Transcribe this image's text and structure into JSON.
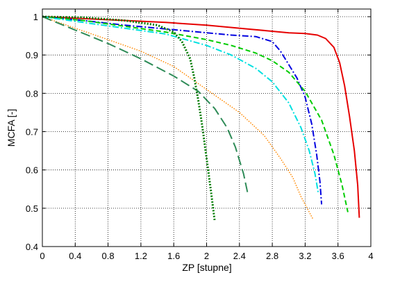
{
  "chart_data": {
    "type": "line",
    "title": "",
    "xlabel": "ZP [stupne]",
    "ylabel": "MCFA [-]",
    "xlim": [
      0,
      4
    ],
    "ylim": [
      0.4,
      1.02
    ],
    "xticks": [
      0,
      0.4,
      0.8,
      1.2,
      1.6,
      2,
      2.4,
      2.8,
      3.2,
      3.6,
      4
    ],
    "xtick_labels": [
      "0",
      "0.4",
      "0.8",
      "1.2",
      "1.6",
      "2",
      "2.4",
      "2.8",
      "3.2",
      "3.6",
      "4"
    ],
    "yticks": [
      0.4,
      0.5,
      0.6,
      0.7,
      0.8,
      0.9,
      1
    ],
    "ytick_labels": [
      "0.4",
      "0.5",
      "0.6",
      "0.7",
      "0.8",
      "0.9",
      "1"
    ],
    "grid": true,
    "legend": "none",
    "series": [
      {
        "color": "#e60000",
        "style": "solid",
        "x": [
          0,
          0.5,
          1.0,
          1.5,
          2.0,
          2.5,
          3.0,
          3.2,
          3.35,
          3.45,
          3.55,
          3.62,
          3.68,
          3.74,
          3.8,
          3.84,
          3.86
        ],
        "y": [
          1.0,
          0.995,
          0.99,
          0.985,
          0.978,
          0.968,
          0.958,
          0.956,
          0.952,
          0.943,
          0.92,
          0.88,
          0.82,
          0.74,
          0.65,
          0.56,
          0.475
        ]
      },
      {
        "color": "#0000e0",
        "style": "dashdot",
        "x": [
          0,
          0.5,
          1.0,
          1.5,
          2.0,
          2.3,
          2.6,
          2.8,
          2.9,
          3.0,
          3.1,
          3.2,
          3.28,
          3.34,
          3.38,
          3.4
        ],
        "y": [
          1.0,
          0.99,
          0.978,
          0.968,
          0.958,
          0.952,
          0.948,
          0.935,
          0.91,
          0.875,
          0.84,
          0.79,
          0.72,
          0.64,
          0.57,
          0.51
        ]
      },
      {
        "color": "#00cc00",
        "style": "dashed",
        "x": [
          0,
          0.5,
          1.0,
          1.5,
          2.0,
          2.3,
          2.6,
          2.8,
          3.0,
          3.2,
          3.4,
          3.55,
          3.65,
          3.72
        ],
        "y": [
          1.0,
          0.99,
          0.975,
          0.96,
          0.94,
          0.925,
          0.905,
          0.885,
          0.855,
          0.805,
          0.73,
          0.64,
          0.56,
          0.49
        ]
      },
      {
        "color": "#00e0e0",
        "style": "dashdot",
        "x": [
          0,
          0.5,
          1.0,
          1.5,
          2.0,
          2.3,
          2.6,
          2.8,
          3.0,
          3.15,
          3.25,
          3.32,
          3.36
        ],
        "y": [
          1.0,
          0.985,
          0.97,
          0.955,
          0.925,
          0.9,
          0.865,
          0.83,
          0.775,
          0.71,
          0.65,
          0.59,
          0.54
        ]
      },
      {
        "color": "#ff8800",
        "style": "dotted",
        "x": [
          0,
          0.4,
          0.8,
          1.2,
          1.6,
          2.0,
          2.4,
          2.7,
          2.9,
          3.05,
          3.15,
          3.25,
          3.3
        ],
        "y": [
          1.0,
          0.97,
          0.94,
          0.91,
          0.87,
          0.81,
          0.75,
          0.69,
          0.63,
          0.58,
          0.53,
          0.49,
          0.47
        ]
      },
      {
        "color": "#2e8b57",
        "style": "longdash",
        "x": [
          0,
          0.4,
          0.8,
          1.2,
          1.6,
          1.9,
          2.1,
          2.25,
          2.35,
          2.45,
          2.5
        ],
        "y": [
          1.0,
          0.965,
          0.93,
          0.89,
          0.845,
          0.805,
          0.76,
          0.71,
          0.66,
          0.59,
          0.54
        ]
      },
      {
        "color": "#007a00",
        "style": "dotted-heavy",
        "x": [
          0,
          0.5,
          1.0,
          1.4,
          1.6,
          1.7,
          1.8,
          1.85,
          1.9,
          1.95,
          2.0,
          2.05,
          2.1
        ],
        "y": [
          1.0,
          0.998,
          0.99,
          0.978,
          0.96,
          0.935,
          0.89,
          0.84,
          0.78,
          0.71,
          0.63,
          0.55,
          0.465
        ]
      }
    ]
  }
}
